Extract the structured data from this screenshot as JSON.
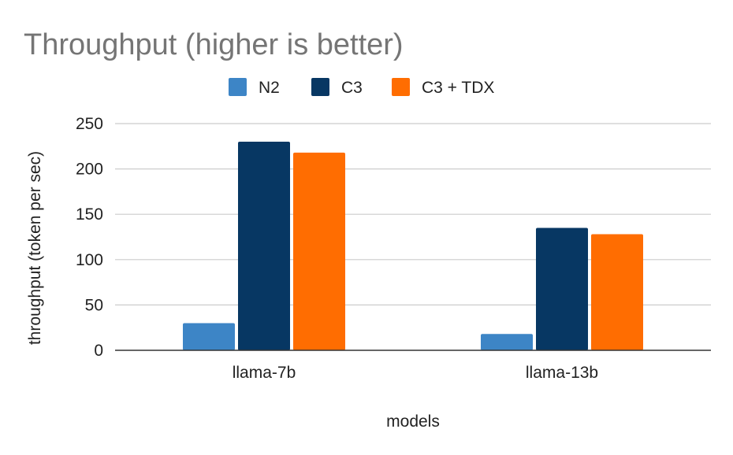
{
  "chart_data": {
    "type": "bar",
    "title": "Throughput (higher is better)",
    "xlabel": "models",
    "ylabel": "throughput (token per sec)",
    "categories": [
      "llama-7b",
      "llama-13b"
    ],
    "series": [
      {
        "name": "N2",
        "color": "#3d85c6",
        "values": [
          30,
          18
        ]
      },
      {
        "name": "C3",
        "color": "#073763",
        "values": [
          230,
          135
        ]
      },
      {
        "name": "C3 + TDX",
        "color": "#ff6d01",
        "values": [
          218,
          128
        ]
      }
    ],
    "ylim": [
      0,
      250
    ],
    "yticks": [
      0,
      50,
      100,
      150,
      200,
      250
    ],
    "grid": true,
    "legend_position": "top"
  }
}
